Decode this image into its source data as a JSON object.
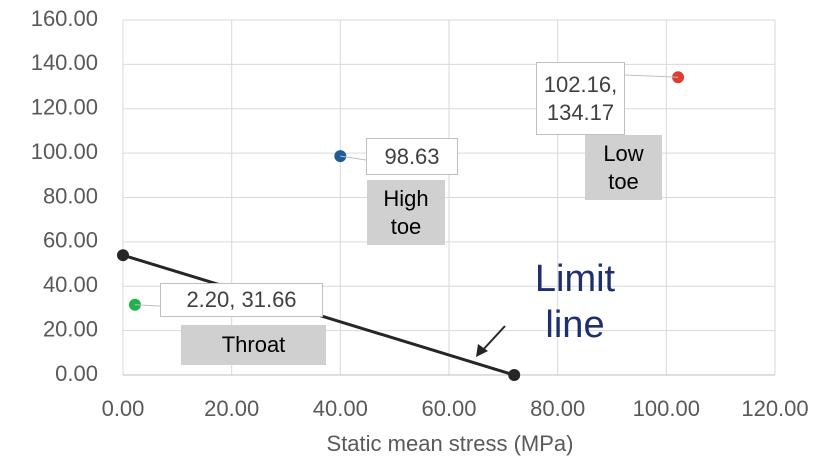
{
  "chart_data": {
    "type": "scatter",
    "x_label": "Static mean stress (MPa)",
    "xlim": [
      0,
      120
    ],
    "xticks": [
      {
        "value": 0,
        "label": "0.00"
      },
      {
        "value": 20,
        "label": "20.00"
      },
      {
        "value": 40,
        "label": "40.00"
      },
      {
        "value": 60,
        "label": "60.00"
      },
      {
        "value": 80,
        "label": "80.00"
      },
      {
        "value": 100,
        "label": "100.00"
      },
      {
        "value": 120,
        "label": "120.00"
      }
    ],
    "ylim": [
      0,
      160
    ],
    "yticks": [
      {
        "value": 0,
        "label": "0.00"
      },
      {
        "value": 20,
        "label": "20.00"
      },
      {
        "value": 40,
        "label": "40.00"
      },
      {
        "value": 60,
        "label": "60.00"
      },
      {
        "value": 80,
        "label": "80.00"
      },
      {
        "value": 100,
        "label": "100.00"
      },
      {
        "value": 120,
        "label": "120.00"
      },
      {
        "value": 140,
        "label": "140.00"
      },
      {
        "value": 160,
        "label": "160.00"
      }
    ],
    "grid": true,
    "series": [
      {
        "name": "Throat",
        "color": "#22b14c",
        "x": [
          2.2
        ],
        "values": [
          31.66
        ],
        "value_labels": [
          "2.20, 31.66"
        ]
      },
      {
        "name": "High toe",
        "color": "#1f5c99",
        "x": [
          40
        ],
        "values": [
          98.63
        ],
        "value_labels": [
          "98.63"
        ]
      },
      {
        "name": "Low toe",
        "color": "#e03c31",
        "x": [
          102.16
        ],
        "values": [
          134.17
        ],
        "value_labels": [
          "102.16, 134.17"
        ]
      },
      {
        "name": "Limit line",
        "color": "#262626",
        "line": true,
        "x": [
          0,
          72
        ],
        "values": [
          54,
          0
        ]
      }
    ]
  }
}
